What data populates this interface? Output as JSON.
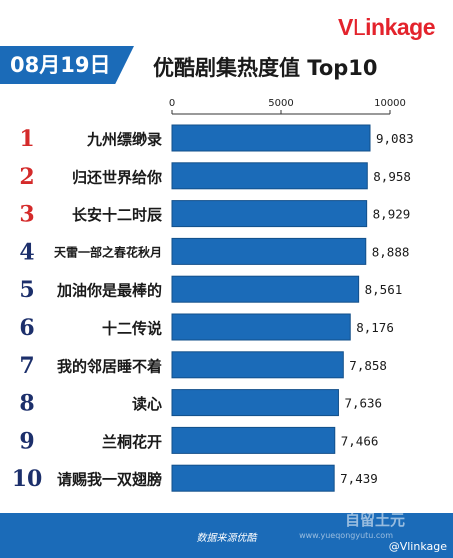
{
  "brand": {
    "logo_v": "V",
    "logo_l": "L",
    "logo_rest": "inkage"
  },
  "header": {
    "date": "08月19日",
    "title": "优酷剧集热度值 Top10"
  },
  "footer": {
    "source": "数据来源优酷",
    "watermark_cn": "自留土元",
    "watermark_url": "www.yueqongyutu.com",
    "weibo": "@Vlinkage"
  },
  "colors": {
    "bar": "#1b6bb8",
    "bar_edge": "#124f8a",
    "rank_top": "#d42a2a",
    "rank_rest": "#1c2f6b"
  },
  "chart_data": {
    "type": "bar",
    "orientation": "horizontal",
    "title": "优酷剧集热度值 Top10",
    "ranks": [
      "1",
      "2",
      "3",
      "4",
      "5",
      "6",
      "7",
      "8",
      "9",
      "10"
    ],
    "categories": [
      "九州缥缈录",
      "归还世界给你",
      "长安十二时辰",
      "天雷一部之春花秋月",
      "加油你是最棒的",
      "十二传说",
      "我的邻居睡不着",
      "读心",
      "兰桐花开",
      "请赐我一双翅膀"
    ],
    "values": [
      9083,
      8958,
      8929,
      8888,
      8561,
      8176,
      7858,
      7636,
      7466,
      7439
    ],
    "value_labels": [
      "9,083",
      "8,958",
      "8,929",
      "8,888",
      "8,561",
      "8,176",
      "7,858",
      "7,636",
      "7,466",
      "7,439"
    ],
    "xlim": [
      0,
      10000
    ],
    "xticks": [
      0,
      5000,
      10000
    ],
    "xtick_labels": [
      "0",
      "5000",
      "10000"
    ],
    "axis_position": "top",
    "grid": false,
    "legend": "none"
  }
}
